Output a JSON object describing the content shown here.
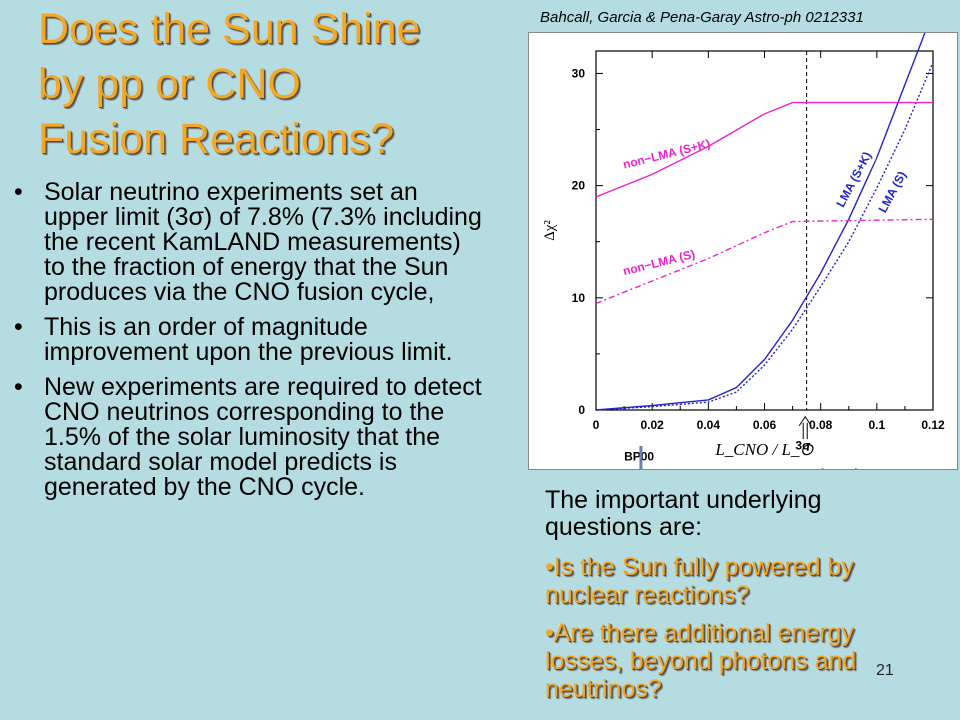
{
  "slide": {
    "title_lines": [
      "Does the Sun Shine",
      "by pp or CNO",
      "Fusion Reactions?"
    ],
    "citation": "Bahcall, Garcia & Pena-Garay Astro-ph 0212331",
    "bullet_char": "•",
    "bullets": [
      "Solar neutrino experiments set an upper limit (3σ) of 7.8% (7.3% including the recent KamLAND measurements) to the fraction of energy that the Sun produces via the CNO fusion cycle,",
      "This is an order of magnitude improvement upon the previous limit.",
      "New experiments are required to detect CNO neutrinos corresponding to the 1.5% of the solar luminosity that the standard solar model predicts is generated by the CNO cycle."
    ],
    "questions_intro": "The important underlying questions are:",
    "questions": [
      "•Is the Sun fully powered by nuclear reactions?",
      "•Are there additional energy losses, beyond photons  and neutrinos?"
    ],
    "slide_number": "21",
    "colors": {
      "background": "#b5dde1",
      "title": "#f5a623",
      "lma": "#2222cc",
      "non_lma": "#ee22cc"
    }
  },
  "chart_data": {
    "type": "line",
    "title": "",
    "xlabel": "L_CNO / L_⊙",
    "ylabel": "Δχ²",
    "xlim": [
      0,
      0.12
    ],
    "ylim": [
      0,
      32
    ],
    "x_ticks": [
      "0",
      "0.02",
      "0.04",
      "0.06",
      "0.08",
      "0.1",
      "0.12"
    ],
    "y_ticks": [
      "0",
      "10",
      "20",
      "30"
    ],
    "vline_x": 0.075,
    "series": [
      {
        "name": "LMA (S+K)",
        "color": "#2222cc",
        "dash": "solid",
        "x": [
          0,
          0.02,
          0.04,
          0.05,
          0.06,
          0.07,
          0.08,
          0.09,
          0.1,
          0.11,
          0.12
        ],
        "y": [
          0,
          0.4,
          0.9,
          2.0,
          4.5,
          8.0,
          12.2,
          17.0,
          22.5,
          29.0,
          35.5
        ]
      },
      {
        "name": "LMA (S)",
        "color": "#2222cc",
        "dash": "dotted",
        "x": [
          0,
          0.02,
          0.04,
          0.05,
          0.06,
          0.07,
          0.08,
          0.09,
          0.1,
          0.11,
          0.12
        ],
        "y": [
          0,
          0.3,
          0.7,
          1.6,
          4.0,
          7.2,
          11.0,
          15.0,
          19.8,
          25.0,
          31.0
        ]
      },
      {
        "name": "non-LMA (S+K)",
        "color": "#ee22cc",
        "dash": "solid",
        "x": [
          0,
          0.02,
          0.04,
          0.06,
          0.07,
          0.12
        ],
        "y": [
          19.0,
          21.0,
          23.5,
          26.4,
          27.4,
          27.4
        ]
      },
      {
        "name": "non-LMA (S)",
        "color": "#ee22cc",
        "dash": "dotdash",
        "x": [
          0,
          0.02,
          0.04,
          0.06,
          0.07,
          0.12
        ],
        "y": [
          9.5,
          11.5,
          13.5,
          15.8,
          16.8,
          17.0
        ]
      }
    ],
    "annotations": [
      {
        "text": "non−LMA (S+K)",
        "x": 0.01,
        "y": 21.5,
        "color": "#ee22cc",
        "angle": -14
      },
      {
        "text": "non−LMA (S)",
        "x": 0.01,
        "y": 12.0,
        "color": "#ee22cc",
        "angle": -14
      },
      {
        "text": "LMA (S+K)",
        "x": 0.088,
        "y": 18.0,
        "color": "#2222cc",
        "angle": -62
      },
      {
        "text": "LMA (S)",
        "x": 0.103,
        "y": 17.5,
        "color": "#2222cc",
        "angle": -62
      },
      {
        "text": "BP00",
        "x": 0.01,
        "y": -4.5,
        "color": "#000000",
        "angle": 0
      },
      {
        "text": "3σ",
        "x": 0.071,
        "y": -3.5,
        "color": "#000000",
        "angle": 0
      },
      {
        "text": "upper bound",
        "x": 0.067,
        "y": -6.0,
        "color": "#000000",
        "angle": 0
      }
    ]
  }
}
